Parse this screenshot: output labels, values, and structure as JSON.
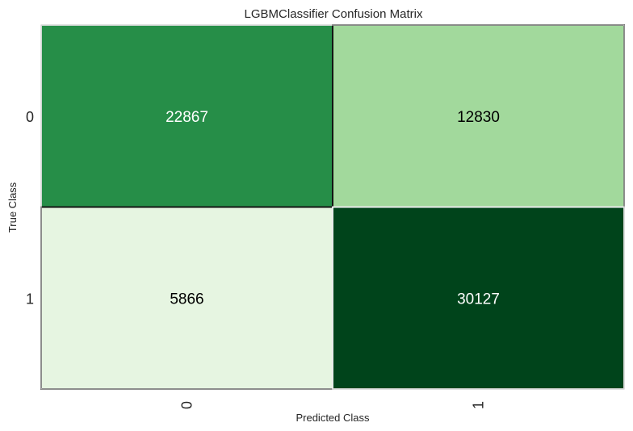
{
  "chart_data": {
    "type": "heatmap",
    "title": "LGBMClassifier Confusion Matrix",
    "xlabel": "Predicted Class",
    "ylabel": "True Class",
    "x_categories": [
      "0",
      "1"
    ],
    "y_categories": [
      "0",
      "1"
    ],
    "values": [
      [
        22867,
        12830
      ],
      [
        5866,
        30127
      ]
    ],
    "colormap": "Greens",
    "grid": false
  }
}
